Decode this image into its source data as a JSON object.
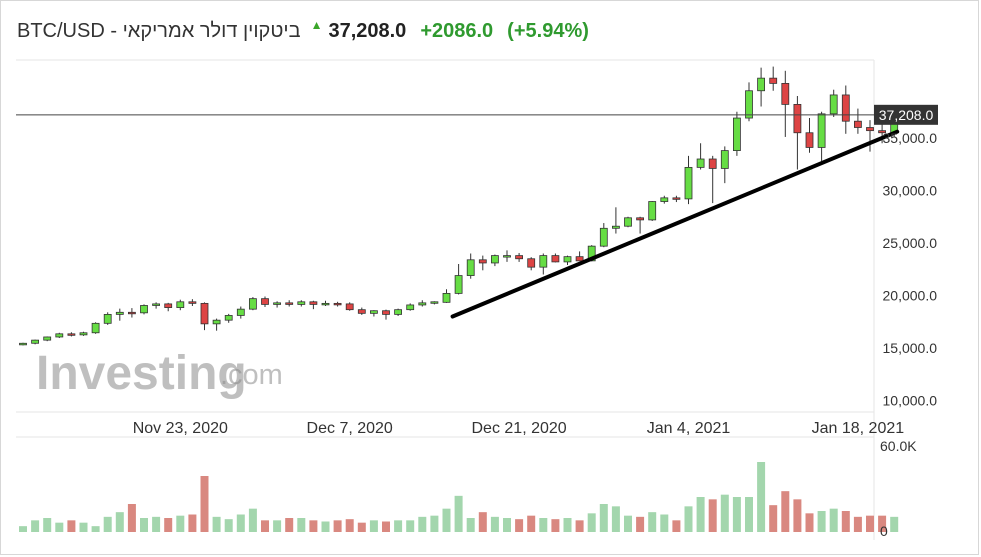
{
  "header": {
    "title": "BTC/USD - ביטקוין דולר אמריקאי",
    "price": "37,208.0",
    "change": "+2086.0",
    "change_pct": "(+5.94%)",
    "up_color": "#3aa62a"
  },
  "watermark": {
    "brand": "Investing",
    "suffix": ".com"
  },
  "colors": {
    "up_fill": "#66dd44",
    "down_fill": "#dd4444",
    "wick": "#333333",
    "vol_up": "#a3d6ad",
    "vol_down": "#d98880",
    "trend": "#000000"
  },
  "chart_data": {
    "type": "candlestick",
    "y_ticks": [
      "35,000.0",
      "30,000.0",
      "25,000.0",
      "20,000.0",
      "15,000.0",
      "10,000.0"
    ],
    "x_ticks": [
      "Nov 23, 2020",
      "Dec 7, 2020",
      "Dec 21, 2020",
      "Jan 4, 2021",
      "Jan 18, 2021"
    ],
    "volume_ticks": [
      "60.0K",
      "0"
    ],
    "ylim": [
      9000,
      41000
    ],
    "last_price_label": "37,208.0",
    "last_price": 37208,
    "start_date": "Nov 10, 2020",
    "candles": [
      [
        15300,
        15500,
        15250,
        15450
      ],
      [
        15450,
        15800,
        15350,
        15750
      ],
      [
        15750,
        16100,
        15650,
        16050
      ],
      [
        16050,
        16450,
        15950,
        16350
      ],
      [
        16350,
        16500,
        16100,
        16250
      ],
      [
        16250,
        16550,
        16150,
        16450
      ],
      [
        16450,
        17450,
        16350,
        17350
      ],
      [
        17350,
        18400,
        17200,
        18200
      ],
      [
        18200,
        18750,
        17600,
        18400
      ],
      [
        18400,
        18800,
        17900,
        18350
      ],
      [
        18350,
        19150,
        18200,
        19050
      ],
      [
        19050,
        19350,
        18750,
        19200
      ],
      [
        19200,
        19300,
        18500,
        18850
      ],
      [
        18850,
        19600,
        18600,
        19400
      ],
      [
        19400,
        19650,
        19000,
        19250
      ],
      [
        19250,
        19350,
        16700,
        17300
      ],
      [
        17300,
        17800,
        16650,
        17650
      ],
      [
        17650,
        18250,
        17400,
        18100
      ],
      [
        18100,
        18950,
        17800,
        18700
      ],
      [
        18700,
        19850,
        18600,
        19700
      ],
      [
        19700,
        19900,
        18900,
        19150
      ],
      [
        19150,
        19450,
        18850,
        19300
      ],
      [
        19300,
        19550,
        18950,
        19150
      ],
      [
        19150,
        19550,
        18950,
        19400
      ],
      [
        19400,
        19500,
        18700,
        19150
      ],
      [
        19150,
        19500,
        19000,
        19250
      ],
      [
        19250,
        19400,
        18950,
        19200
      ],
      [
        19200,
        19350,
        18550,
        18650
      ],
      [
        18650,
        18850,
        18150,
        18300
      ],
      [
        18300,
        18600,
        18000,
        18550
      ],
      [
        18550,
        18650,
        17700,
        18200
      ],
      [
        18200,
        18750,
        18050,
        18650
      ],
      [
        18650,
        19250,
        18550,
        19100
      ],
      [
        19100,
        19550,
        18950,
        19300
      ],
      [
        19300,
        19450,
        19150,
        19400
      ],
      [
        19350,
        20600,
        19300,
        20200
      ],
      [
        20200,
        23000,
        20100,
        21900
      ],
      [
        21900,
        24000,
        21600,
        23400
      ],
      [
        23400,
        23800,
        22400,
        23100
      ],
      [
        23100,
        23900,
        22800,
        23800
      ],
      [
        23800,
        24300,
        23200,
        23800
      ],
      [
        23800,
        24050,
        23200,
        23500
      ],
      [
        23500,
        23650,
        22400,
        22700
      ],
      [
        22700,
        24000,
        22000,
        23800
      ],
      [
        23800,
        24000,
        23150,
        23200
      ],
      [
        23200,
        23800,
        22900,
        23700
      ],
      [
        23700,
        24200,
        23300,
        23300
      ],
      [
        23300,
        24800,
        23250,
        24700
      ],
      [
        24700,
        26900,
        24600,
        26400
      ],
      [
        26400,
        28400,
        25900,
        26600
      ],
      [
        26600,
        27500,
        26500,
        27400
      ],
      [
        27400,
        27500,
        25900,
        27200
      ],
      [
        27200,
        29000,
        27100,
        28950
      ],
      [
        28950,
        29500,
        28750,
        29300
      ],
      [
        29300,
        29500,
        28900,
        29200
      ],
      [
        29200,
        33300,
        28700,
        32200
      ],
      [
        32200,
        34500,
        32000,
        33000
      ],
      [
        33000,
        33300,
        28800,
        32100
      ],
      [
        32100,
        34200,
        30700,
        33800
      ],
      [
        33800,
        37500,
        33300,
        36900
      ],
      [
        36900,
        40300,
        36600,
        39500
      ],
      [
        39500,
        41700,
        38000,
        40700
      ],
      [
        40700,
        41800,
        39500,
        40200
      ],
      [
        40200,
        41400,
        35100,
        38200
      ],
      [
        38200,
        39000,
        32000,
        35500
      ],
      [
        35500,
        36900,
        33600,
        34100
      ],
      [
        34100,
        37500,
        32800,
        37300
      ],
      [
        37300,
        39600,
        37000,
        39100
      ],
      [
        39100,
        40000,
        35400,
        36600
      ],
      [
        36600,
        37800,
        35400,
        36000
      ],
      [
        36000,
        36700,
        33700,
        35700
      ],
      [
        35700,
        36700,
        34500,
        35500
      ],
      [
        35500,
        37450,
        35100,
        37200
      ]
    ],
    "volumes": [
      5,
      10,
      12,
      8,
      10,
      8,
      5,
      13,
      17,
      24,
      12,
      13,
      12,
      14,
      15,
      48,
      13,
      11,
      15,
      20,
      10,
      10,
      12,
      12,
      10,
      9,
      10,
      11,
      8,
      10,
      9,
      10,
      10,
      13,
      14,
      20,
      31,
      12,
      17,
      13,
      12,
      11,
      14,
      12,
      11,
      12,
      10,
      16,
      24,
      22,
      14,
      13,
      17,
      15,
      10,
      22,
      30,
      28,
      32,
      30,
      30,
      60,
      23,
      35,
      28,
      16,
      18,
      20,
      18,
      13,
      14,
      14,
      13
    ],
    "trendline": [
      [
        36,
        18000
      ],
      [
        72,
        35600
      ]
    ]
  }
}
